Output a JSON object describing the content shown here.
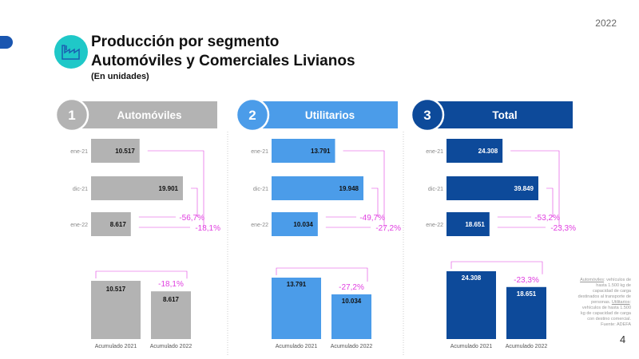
{
  "year": "2022",
  "title_line1": "Producción por segmento",
  "title_line2": "Automóviles y Comerciales Livianos",
  "subtitle": "(En unidades)",
  "page_number": "4",
  "footnote": {
    "term1": "Automóviles",
    "def1": ": vehículos de hasta 1.500 kg de capacidad de carga destinados al transporte de personas.",
    "term2": "Utilitarios",
    "def2": ": vehículos de hasta 1.500 kg de capacidad de carga con destino comercial.",
    "source": "Fuente: ADEFA"
  },
  "colors": {
    "automoviles": "#b3b3b3",
    "utilitarios": "#4b9ce9",
    "total": "#0d4a9a",
    "variation": "#e03fe0",
    "icon": "#1fc8c8"
  },
  "chart_data": [
    {
      "type": "bar",
      "number": "1",
      "title": "Automóviles",
      "categories": [
        "ene-21",
        "dic-21",
        "ene-22"
      ],
      "values": [
        10517,
        19901,
        8617
      ],
      "value_labels": [
        "10.517",
        "19.901",
        "8.617"
      ],
      "variations": {
        "monthly": "-56,7%",
        "yearly": "-18,1%"
      },
      "accumulated": {
        "categories": [
          "Acumulado 2021",
          "Acumulado 2022"
        ],
        "values": [
          10517,
          8617
        ],
        "value_labels": [
          "10.517",
          "8.617"
        ],
        "variation": "-18,1%"
      }
    },
    {
      "type": "bar",
      "number": "2",
      "title": "Utilitarios",
      "categories": [
        "ene-21",
        "dic-21",
        "ene-22"
      ],
      "values": [
        13791,
        19948,
        10034
      ],
      "value_labels": [
        "13.791",
        "19.948",
        "10.034"
      ],
      "variations": {
        "monthly": "-49,7%",
        "yearly": "-27,2%"
      },
      "accumulated": {
        "categories": [
          "Acumulado 2021",
          "Acumulado 2022"
        ],
        "values": [
          13791,
          10034
        ],
        "value_labels": [
          "13.791",
          "10.034"
        ],
        "variation": "-27,2%"
      }
    },
    {
      "type": "bar",
      "number": "3",
      "title": "Total",
      "categories": [
        "ene-21",
        "dic-21",
        "ene-22"
      ],
      "values": [
        24308,
        39849,
        18651
      ],
      "value_labels": [
        "24.308",
        "39.849",
        "18.651"
      ],
      "variations": {
        "monthly": "-53,2%",
        "yearly": "-23,3%"
      },
      "accumulated": {
        "categories": [
          "Acumulado 2021",
          "Acumulado 2022"
        ],
        "values": [
          24308,
          18651
        ],
        "value_labels": [
          "24.308",
          "18.651"
        ],
        "variation": "-23,3%"
      }
    }
  ]
}
